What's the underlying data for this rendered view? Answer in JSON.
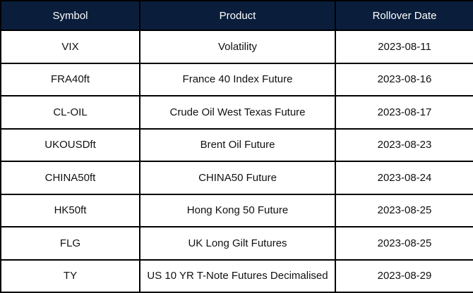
{
  "table": {
    "columns": [
      "Symbol",
      "Product",
      "Rollover Date"
    ],
    "rows": [
      {
        "symbol": "VIX",
        "product": "Volatility",
        "rollover_date": "2023-08-11"
      },
      {
        "symbol": "FRA40ft",
        "product": "France 40 Index Future",
        "rollover_date": "2023-08-16"
      },
      {
        "symbol": "CL-OIL",
        "product": "Crude Oil West Texas Future",
        "rollover_date": "2023-08-17"
      },
      {
        "symbol": "UKOUSDft",
        "product": "Brent Oil Future",
        "rollover_date": "2023-08-23"
      },
      {
        "symbol": "CHINA50ft",
        "product": "CHINA50 Future",
        "rollover_date": "2023-08-24"
      },
      {
        "symbol": "HK50ft",
        "product": "Hong Kong 50 Future",
        "rollover_date": "2023-08-25"
      },
      {
        "symbol": "FLG",
        "product": "UK Long Gilt Futures",
        "rollover_date": "2023-08-25"
      },
      {
        "symbol": "TY",
        "product": "US 10 YR T-Note Futures Decimalised",
        "rollover_date": "2023-08-29"
      }
    ]
  },
  "colors": {
    "header_bg": "#0a1e3c",
    "header_text": "#ffffff",
    "border": "#000000",
    "row_bg": "#ffffff",
    "body_text": "#111111"
  }
}
